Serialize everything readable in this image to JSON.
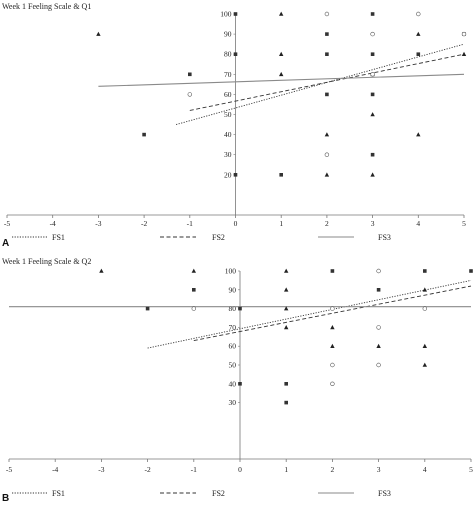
{
  "chart_data": [
    {
      "panel_label": "A",
      "type": "scatter",
      "title": "Week 1 Feeling Scale & Q1",
      "xlim": [
        -5,
        5
      ],
      "ylim": [
        0,
        100
      ],
      "x_ticks": [
        "-5",
        "-4",
        "-3",
        "-2",
        "-1",
        "0",
        "1",
        "2",
        "3",
        "4",
        "5"
      ],
      "y_ticks": [
        "20",
        "30",
        "40",
        "50",
        "60",
        "70",
        "80",
        "90",
        "100"
      ],
      "grid": false,
      "legend_position": "bottom",
      "series": [
        {
          "name": "FS1",
          "marker": "square",
          "line_style": "dotted",
          "points": [
            [
              -2,
              40
            ],
            [
              -1,
              70
            ],
            [
              0,
              100
            ],
            [
              0,
              80
            ],
            [
              0,
              20
            ],
            [
              1,
              20
            ],
            [
              2,
              60
            ],
            [
              2,
              80
            ],
            [
              2,
              90
            ],
            [
              3,
              100
            ],
            [
              3,
              80
            ],
            [
              3,
              60
            ],
            [
              3,
              30
            ],
            [
              4,
              80
            ],
            [
              5,
              90
            ]
          ],
          "trend": [
            [
              -1.3,
              45
            ],
            [
              5,
              85
            ]
          ]
        },
        {
          "name": "FS2",
          "marker": "triangle",
          "line_style": "dashed",
          "points": [
            [
              -3,
              90
            ],
            [
              1,
              100
            ],
            [
              1,
              80
            ],
            [
              1,
              70
            ],
            [
              2,
              40
            ],
            [
              2,
              20
            ],
            [
              3,
              70
            ],
            [
              3,
              50
            ],
            [
              3,
              20
            ],
            [
              4,
              40
            ],
            [
              5,
              80
            ],
            [
              4,
              90
            ]
          ],
          "trend": [
            [
              -1,
              52
            ],
            [
              5,
              80
            ]
          ]
        },
        {
          "name": "FS3",
          "marker": "circle",
          "line_style": "solid",
          "points": [
            [
              -1,
              60
            ],
            [
              2,
              100
            ],
            [
              2,
              30
            ],
            [
              3,
              90
            ],
            [
              3,
              70
            ],
            [
              4,
              100
            ],
            [
              5,
              90
            ]
          ],
          "trend": [
            [
              -3,
              64
            ],
            [
              5,
              70
            ]
          ]
        }
      ]
    },
    {
      "panel_label": "B",
      "type": "scatter",
      "title": "Week 1 Feeling Scale & Q2",
      "xlim": [
        -5,
        5
      ],
      "ylim": [
        0,
        100
      ],
      "x_ticks": [
        "-5",
        "-4",
        "-3",
        "-2",
        "-1",
        "0",
        "1",
        "2",
        "3",
        "4",
        "5"
      ],
      "y_ticks": [
        "30",
        "40",
        "50",
        "60",
        "70",
        "80",
        "90",
        "100"
      ],
      "grid": false,
      "legend_position": "bottom",
      "series": [
        {
          "name": "FS1",
          "marker": "square",
          "line_style": "dotted",
          "points": [
            [
              -2,
              80
            ],
            [
              -1,
              90
            ],
            [
              0,
              80
            ],
            [
              0,
              40
            ],
            [
              1,
              40
            ],
            [
              1,
              30
            ],
            [
              3,
              90
            ],
            [
              4,
              100
            ],
            [
              5,
              100
            ],
            [
              2,
              100
            ]
          ],
          "trend": [
            [
              -2,
              59
            ],
            [
              5,
              95
            ]
          ]
        },
        {
          "name": "FS2",
          "marker": "triangle",
          "line_style": "dashed",
          "points": [
            [
              -3,
              100
            ],
            [
              -1,
              100
            ],
            [
              1,
              100
            ],
            [
              1,
              90
            ],
            [
              1,
              80
            ],
            [
              1,
              70
            ],
            [
              2,
              70
            ],
            [
              2,
              60
            ],
            [
              3,
              60
            ],
            [
              4,
              60
            ],
            [
              4,
              50
            ],
            [
              4,
              90
            ]
          ],
          "trend": [
            [
              -1,
              63
            ],
            [
              5,
              92
            ]
          ]
        },
        {
          "name": "FS3",
          "marker": "circle",
          "line_style": "solid",
          "points": [
            [
              -1,
              80
            ],
            [
              2,
              80
            ],
            [
              2,
              50
            ],
            [
              2,
              40
            ],
            [
              3,
              100
            ],
            [
              3,
              70
            ],
            [
              3,
              50
            ],
            [
              4,
              80
            ]
          ],
          "trend": [
            [
              -5,
              81
            ],
            [
              5,
              81
            ]
          ]
        }
      ]
    }
  ]
}
